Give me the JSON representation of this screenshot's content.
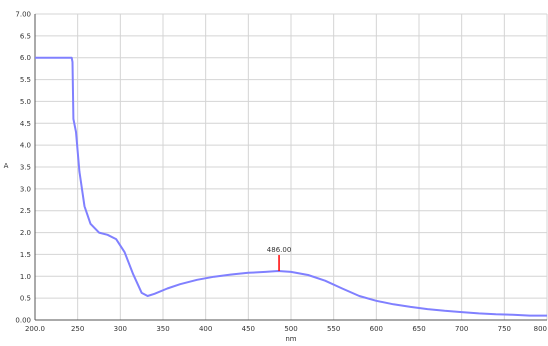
{
  "chart_data": {
    "type": "line",
    "title": "",
    "xlabel": "nm",
    "ylabel": "A",
    "xlim": [
      200,
      800
    ],
    "ylim": [
      0,
      7
    ],
    "x_ticks": [
      200,
      250,
      300,
      350,
      400,
      450,
      500,
      550,
      600,
      650,
      700,
      750,
      800
    ],
    "x_tick_labels": [
      "200.0",
      "250",
      "300",
      "350",
      "400",
      "450",
      "500",
      "550",
      "600",
      "650",
      "700",
      "750",
      "800"
    ],
    "y_ticks": [
      0,
      0.5,
      1,
      1.5,
      2,
      2.5,
      3,
      3.5,
      4,
      4.5,
      5,
      5.5,
      6,
      6.5,
      7
    ],
    "y_tick_labels": [
      "0.00",
      "0.5",
      "1.0",
      "1.5",
      "2.0",
      "2.5",
      "3.0",
      "3.5",
      "4.0",
      "4.5",
      "5.0",
      "5.5",
      "6.0",
      "6.5",
      "7.00"
    ],
    "grid": true,
    "series": [
      {
        "color": "#8080ff",
        "x": [
          200,
          243,
          244,
          245,
          248,
          252,
          258,
          265,
          275,
          285,
          295,
          305,
          315,
          325,
          332,
          340,
          355,
          370,
          390,
          410,
          430,
          450,
          470,
          485,
          500,
          520,
          540,
          560,
          580,
          600,
          620,
          640,
          660,
          680,
          700,
          720,
          740,
          760,
          780,
          800
        ],
        "y": [
          6.0,
          6.0,
          5.9,
          4.6,
          4.3,
          3.4,
          2.6,
          2.2,
          2.0,
          1.95,
          1.85,
          1.55,
          1.05,
          0.62,
          0.55,
          0.6,
          0.72,
          0.82,
          0.92,
          0.99,
          1.04,
          1.08,
          1.1,
          1.12,
          1.1,
          1.03,
          0.9,
          0.72,
          0.55,
          0.44,
          0.36,
          0.3,
          0.25,
          0.21,
          0.18,
          0.15,
          0.13,
          0.12,
          0.1,
          0.1
        ]
      }
    ],
    "annotations": [
      {
        "x": 486,
        "y": 1.12,
        "label": "486.00",
        "color": "#ff0000"
      }
    ]
  }
}
